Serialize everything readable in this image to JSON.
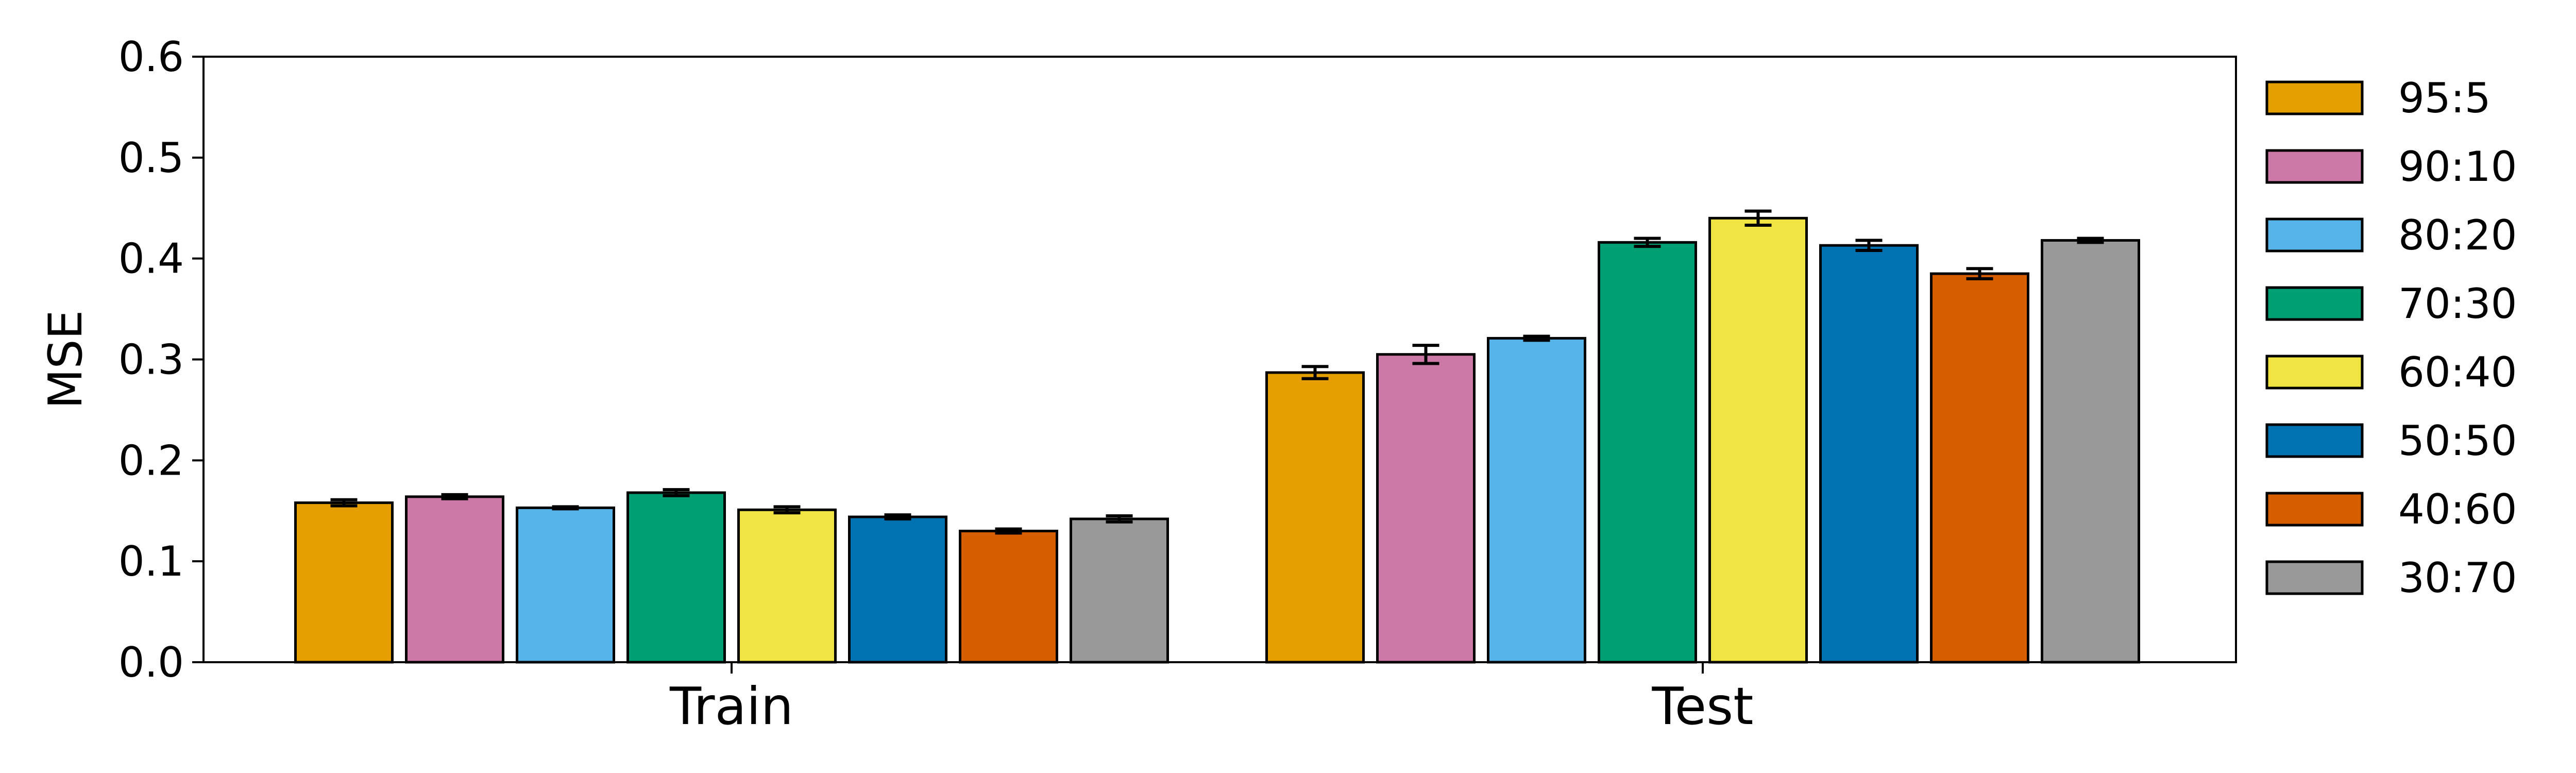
{
  "chart_data": {
    "type": "bar",
    "title": "",
    "xlabel": "",
    "ylabel": "MSE",
    "ylim": [
      0,
      0.6
    ],
    "yticks": [
      "0.0",
      "0.1",
      "0.2",
      "0.3",
      "0.4",
      "0.5",
      "0.6"
    ],
    "grid": false,
    "legend_position": "right",
    "categories": [
      "Train",
      "Test"
    ],
    "series": [
      {
        "name": "95:5",
        "color": "#E69F00",
        "values": [
          0.158,
          0.287
        ],
        "errors": [
          0.003,
          0.006
        ]
      },
      {
        "name": "90:10",
        "color": "#CC79A7",
        "values": [
          0.164,
          0.305
        ],
        "errors": [
          0.002,
          0.009
        ]
      },
      {
        "name": "80:20",
        "color": "#56B4E9",
        "values": [
          0.153,
          0.321
        ],
        "errors": [
          0.001,
          0.002
        ]
      },
      {
        "name": "70:30",
        "color": "#009E73",
        "values": [
          0.168,
          0.416
        ],
        "errors": [
          0.003,
          0.004
        ]
      },
      {
        "name": "60:40",
        "color": "#F0E442",
        "values": [
          0.151,
          0.44
        ],
        "errors": [
          0.003,
          0.007
        ]
      },
      {
        "name": "50:50",
        "color": "#0072B2",
        "values": [
          0.144,
          0.413
        ],
        "errors": [
          0.002,
          0.005
        ]
      },
      {
        "name": "40:60",
        "color": "#D55E00",
        "values": [
          0.13,
          0.385
        ],
        "errors": [
          0.002,
          0.005
        ]
      },
      {
        "name": "30:70",
        "color": "#999999",
        "values": [
          0.142,
          0.418
        ],
        "errors": [
          0.003,
          0.002
        ]
      }
    ]
  }
}
